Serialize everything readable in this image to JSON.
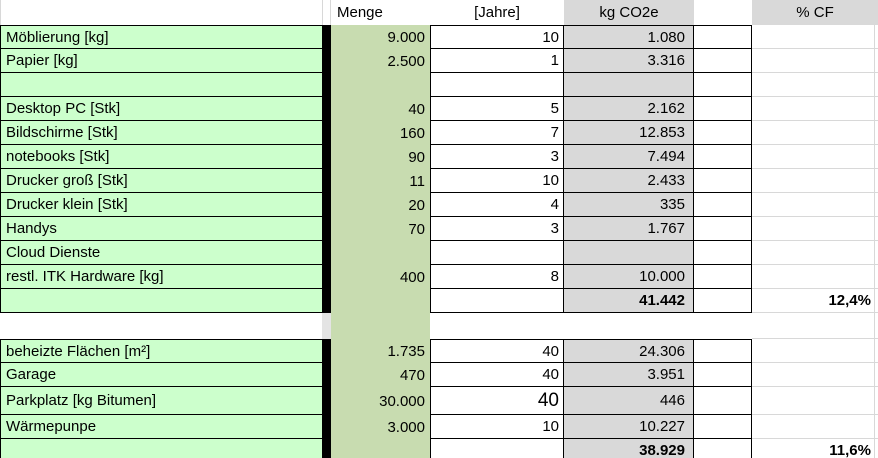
{
  "sheet": {
    "description": "CO2 footprint calculation spreadsheet (German)",
    "headers": {
      "menge": "Menge",
      "jahre": "[Jahre]",
      "co2e": "kg CO2e",
      "cf": "% CF"
    },
    "colors": {
      "label_green": "#ccffcc",
      "menge_green": "#c8dcb0",
      "gray_fill": "#d9d9d9",
      "border": "#000000",
      "gridline": "#d8d8d8"
    },
    "rows": [
      {
        "type": "data",
        "label": "Möblierung [kg]",
        "menge": "9.000",
        "jahre": "10",
        "co2e": "1.080",
        "cf": ""
      },
      {
        "type": "data",
        "label": "Papier [kg]",
        "menge": "2.500",
        "jahre": "1",
        "co2e": "3.316",
        "cf": ""
      },
      {
        "type": "data",
        "label": "",
        "menge": "",
        "jahre": "",
        "co2e": "",
        "cf": ""
      },
      {
        "type": "data",
        "label": "Desktop PC [Stk]",
        "menge": "40",
        "jahre": "5",
        "co2e": "2.162",
        "cf": ""
      },
      {
        "type": "data",
        "label": "Bildschirme [Stk]",
        "menge": "160",
        "jahre": "7",
        "co2e": "12.853",
        "cf": ""
      },
      {
        "type": "data",
        "label": "notebooks [Stk]",
        "menge": "90",
        "jahre": "3",
        "co2e": "7.494",
        "cf": ""
      },
      {
        "type": "data",
        "label": "Drucker groß [Stk]",
        "menge": "11",
        "jahre": "10",
        "co2e": "2.433",
        "cf": ""
      },
      {
        "type": "data",
        "label": "Drucker klein [Stk]",
        "menge": "20",
        "jahre": "4",
        "co2e": "335",
        "cf": ""
      },
      {
        "type": "data",
        "label": "Handys",
        "menge": "70",
        "jahre": "3",
        "co2e": "1.767",
        "cf": ""
      },
      {
        "type": "data",
        "label": "Cloud Dienste",
        "menge": "",
        "jahre": "",
        "co2e": "",
        "cf": ""
      },
      {
        "type": "data",
        "label": "restl. ITK Hardware [kg]",
        "menge": "400",
        "jahre": "8",
        "co2e": "10.000",
        "cf": ""
      },
      {
        "type": "total",
        "label": "",
        "menge": "",
        "jahre": "",
        "co2e": "41.442",
        "cf": "12,4%"
      },
      {
        "type": "gap",
        "label": "",
        "menge": "",
        "jahre": "",
        "co2e": "",
        "cf": ""
      },
      {
        "type": "data",
        "label": "beheizte Flächen [m²]",
        "menge": "1.735",
        "jahre": "40",
        "co2e": "24.306",
        "cf": ""
      },
      {
        "type": "data",
        "label": "Garage",
        "menge": "470",
        "jahre": "40",
        "co2e": "3.951",
        "cf": ""
      },
      {
        "type": "data",
        "label": "Parkplatz  [kg Bitumen]",
        "menge": "30.000",
        "jahre": "40",
        "co2e": "446",
        "cf": "",
        "jahre_large": true
      },
      {
        "type": "data",
        "label": "Wärmepunpe",
        "menge": "3.000",
        "jahre": "10",
        "co2e": "10.227",
        "cf": ""
      },
      {
        "type": "total",
        "label": "",
        "menge": "",
        "jahre": "",
        "co2e": "38.929",
        "cf": "11,6%"
      }
    ]
  }
}
